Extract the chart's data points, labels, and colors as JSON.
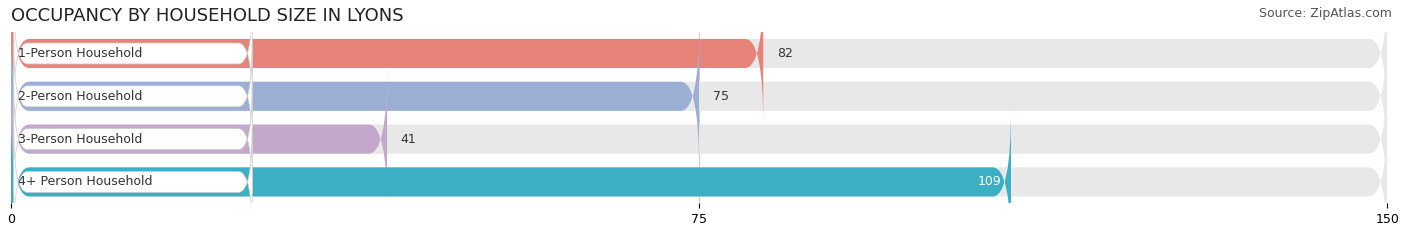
{
  "title": "OCCUPANCY BY HOUSEHOLD SIZE IN LYONS",
  "source": "Source: ZipAtlas.com",
  "categories": [
    "1-Person Household",
    "2-Person Household",
    "3-Person Household",
    "4+ Person Household"
  ],
  "values": [
    82,
    75,
    41,
    109
  ],
  "bar_colors": [
    "#E8837A",
    "#9BAED4",
    "#C4A8CC",
    "#3BAFC4"
  ],
  "label_colors": [
    "#333333",
    "#333333",
    "#333333",
    "#ffffff"
  ],
  "xlim": [
    0,
    150
  ],
  "xticks": [
    0,
    75,
    150
  ],
  "background_color": "#ffffff",
  "bar_bg_color": "#e8e8e8",
  "title_fontsize": 13,
  "source_fontsize": 9,
  "label_fontsize": 9,
  "value_fontsize": 9
}
